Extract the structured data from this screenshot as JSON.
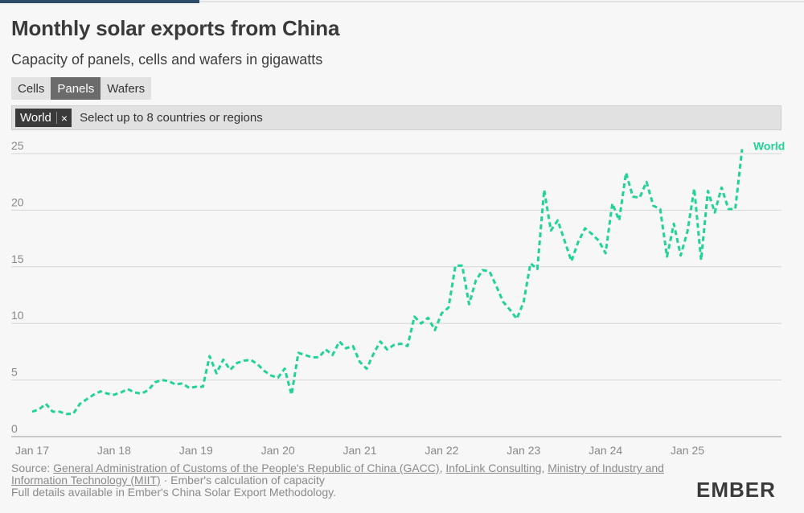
{
  "title": "Monthly solar exports from China",
  "subtitle": "Capacity of panels, cells and wafers in gigawatts",
  "tabs": [
    {
      "label": "Cells",
      "active": false
    },
    {
      "label": "Panels",
      "active": true
    },
    {
      "label": "Wafers",
      "active": false
    }
  ],
  "selector": {
    "chip_label": "World",
    "chip_remove": "×",
    "placeholder": "Select up to 8 countries or regions"
  },
  "source": {
    "prefix": "Source: ",
    "link1": "General Administration of Customs of the People's Republic of China (GACC)",
    "sep1": ", ",
    "link2": "InfoLink Consulting",
    "sep2": ", ",
    "link3": "Ministry of Industry and Information Technology (MIIT)",
    "suffix": " · Ember's calculation of capacity",
    "line2": "Full details available in Ember's China Solar Export Methodology."
  },
  "logo": {
    "text": "EMBER"
  },
  "colors": {
    "series": "#21d394",
    "grid": "#d6d6d6",
    "axis_text": "#888888"
  },
  "chart_data": {
    "type": "line",
    "title": "Monthly solar exports from China",
    "ylabel": "",
    "xlabel": "",
    "ylim": [
      0,
      25
    ],
    "yticks": [
      0,
      5,
      10,
      15,
      20,
      25
    ],
    "xtick_labels": [
      "Jan 17",
      "Jan 18",
      "Jan 19",
      "Jan 20",
      "Jan 21",
      "Jan 22",
      "Jan 23",
      "Jan 24",
      "Jan 25"
    ],
    "grid": true,
    "line_style": "dashed",
    "start": "2017-01",
    "series": [
      {
        "name": "World",
        "values": [
          2.2,
          2.4,
          2.9,
          2.2,
          2.2,
          2.0,
          2.0,
          2.9,
          3.3,
          3.7,
          4.0,
          3.8,
          3.7,
          3.9,
          4.2,
          3.9,
          3.8,
          4.1,
          4.8,
          5.0,
          4.9,
          4.6,
          4.7,
          4.3,
          4.4,
          4.4,
          7.1,
          5.6,
          6.8,
          5.9,
          6.5,
          6.7,
          6.8,
          6.4,
          5.8,
          5.4,
          5.2,
          6.0,
          3.7,
          7.4,
          7.2,
          7.0,
          7.0,
          7.7,
          7.2,
          8.4,
          7.8,
          8.0,
          6.6,
          6.0,
          7.3,
          8.4,
          7.7,
          8.1,
          8.2,
          8.0,
          10.6,
          10.0,
          10.5,
          9.4,
          10.9,
          11.4,
          15.1,
          15.1,
          11.7,
          13.8,
          14.7,
          14.6,
          13.3,
          11.9,
          11.2,
          10.4,
          11.9,
          15.3,
          14.8,
          21.8,
          18.2,
          19.1,
          17.3,
          15.5,
          17.2,
          18.4,
          17.9,
          17.3,
          16.2,
          20.6,
          19.1,
          23.3,
          21.2,
          21.1,
          22.5,
          20.4,
          20.1,
          15.9,
          18.8,
          16.0,
          18.1,
          21.9,
          15.6,
          21.7,
          19.8,
          22.0,
          20.1,
          20.1,
          25.4
        ]
      }
    ]
  }
}
